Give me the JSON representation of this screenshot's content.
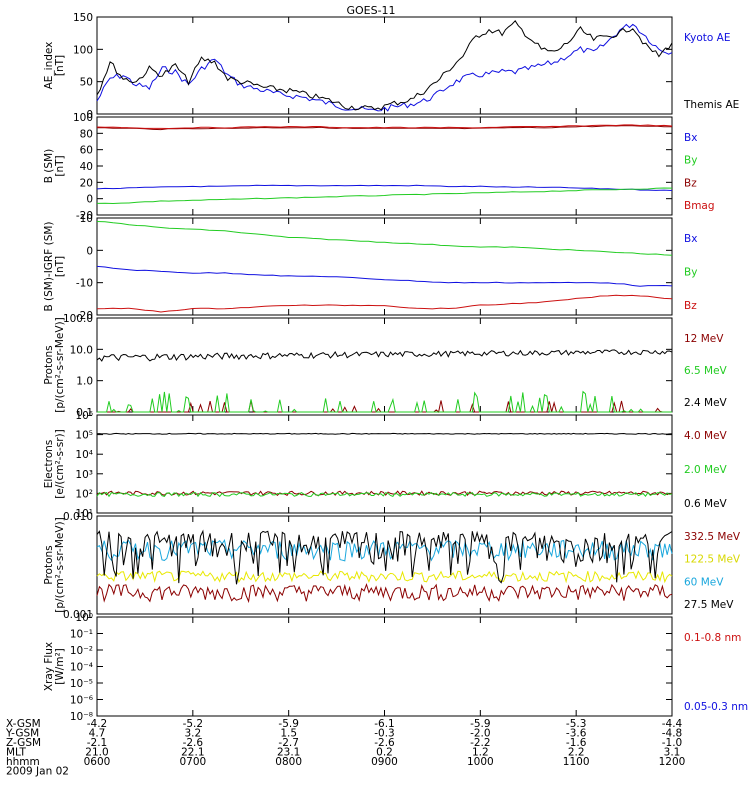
{
  "title": "GOES-11",
  "colors": {
    "black": "#000000",
    "blue": "#1010e0",
    "green": "#22cc22",
    "red": "#cc1111",
    "darkred": "#8b0000",
    "yellow": "#e8e800",
    "cyan": "#1aa7dd"
  },
  "chart_data": [
    {
      "type": "line",
      "ylabel": "AE_index\n[nT]",
      "ylim": [
        0,
        150
      ],
      "yticks": [
        "0",
        "50",
        "100",
        "150"
      ],
      "series": [
        {
          "name": "Kyoto AE",
          "color": "blue",
          "values": [
            20,
            55,
            60,
            45,
            40,
            70,
            65,
            45,
            70,
            85,
            60,
            45,
            40,
            35,
            30,
            28,
            25,
            20,
            15,
            10,
            8,
            5,
            8,
            12,
            15,
            20,
            30,
            45,
            55,
            60,
            62,
            65,
            65,
            70,
            75,
            80,
            90,
            100,
            95,
            110,
            130,
            140,
            120,
            100,
            95
          ]
        },
        {
          "name": "Themis AE",
          "color": "black",
          "values": [
            30,
            80,
            55,
            50,
            70,
            60,
            75,
            50,
            85,
            80,
            55,
            50,
            45,
            40,
            38,
            35,
            30,
            25,
            20,
            12,
            10,
            8,
            12,
            18,
            22,
            35,
            50,
            70,
            90,
            120,
            130,
            125,
            140,
            120,
            100,
            95,
            110,
            130,
            115,
            120,
            125,
            135,
            105,
            90,
            110
          ]
        }
      ]
    },
    {
      "type": "line",
      "ylabel": "B (SM)\n[nT]",
      "ylim": [
        -20,
        100
      ],
      "yticks": [
        "-20",
        "0",
        "20",
        "40",
        "60",
        "80",
        "100"
      ],
      "series": [
        {
          "name": "Bx",
          "color": "blue",
          "values": [
            12,
            13,
            14,
            15,
            15,
            16,
            16,
            16,
            16,
            16,
            16,
            15,
            15,
            14,
            14,
            13,
            12,
            11,
            10
          ]
        },
        {
          "name": "By",
          "color": "green",
          "values": [
            -6,
            -5,
            -3,
            -2,
            -1,
            0,
            1,
            2,
            3,
            4,
            5,
            6,
            7,
            8,
            9,
            10,
            11,
            12,
            13
          ]
        },
        {
          "name": "Bz",
          "color": "darkred",
          "values": [
            87,
            86,
            85,
            86,
            86,
            87,
            87,
            87,
            86,
            86,
            86,
            86,
            86,
            87,
            87,
            88,
            89,
            89,
            88
          ]
        },
        {
          "name": "Bmag",
          "color": "red",
          "values": [
            88,
            87,
            86,
            87,
            87,
            88,
            88,
            88,
            87,
            87,
            87,
            87,
            87,
            88,
            88,
            89,
            90,
            90,
            89
          ]
        }
      ]
    },
    {
      "type": "line",
      "ylabel": "B (SM)-IGRF (SM)\n[nT]",
      "ylim": [
        -20,
        10
      ],
      "yticks": [
        "-20",
        "-10",
        "0",
        "10"
      ],
      "series": [
        {
          "name": "Bx",
          "color": "blue",
          "values": [
            -5,
            -6,
            -6.5,
            -7,
            -7,
            -7.5,
            -8,
            -8,
            -8.5,
            -9,
            -9.5,
            -10,
            -10,
            -10,
            -10,
            -10,
            -10,
            -11,
            -11
          ]
        },
        {
          "name": "By",
          "color": "green",
          "values": [
            9,
            8,
            7,
            6.5,
            6,
            5,
            4,
            3.5,
            3,
            2.5,
            2,
            1.5,
            1,
            1,
            0.5,
            0,
            -0.5,
            -1,
            -1.5
          ]
        },
        {
          "name": "Bz",
          "color": "red",
          "values": [
            -18,
            -18,
            -19,
            -18,
            -18,
            -17.5,
            -17,
            -17,
            -17,
            -17,
            -18,
            -18,
            -17,
            -16.5,
            -16,
            -15,
            -14,
            -14,
            -15
          ]
        }
      ]
    },
    {
      "type": "line",
      "ylabel": "Protons\n[p/(cm²-s-sr-MeV)]",
      "ylog": true,
      "ylim": [
        0.1,
        100
      ],
      "yticks": [
        "0.1",
        "1.0",
        "10.0",
        "100.0"
      ],
      "series": [
        {
          "name": "12 MeV",
          "color": "darkred"
        },
        {
          "name": "6.5 MeV",
          "color": "green"
        },
        {
          "name": "2.4 MeV",
          "color": "black"
        }
      ]
    },
    {
      "type": "line",
      "ylabel": "Electrons\n[e/(cm²-s-sr)]",
      "ylog": true,
      "ylim": [
        10,
        1000000
      ],
      "yticks": [
        "10¹",
        "10²",
        "10³",
        "10⁴",
        "10⁵",
        "10⁶"
      ],
      "series": [
        {
          "name": "4.0 MeV",
          "color": "darkred"
        },
        {
          "name": "2.0 MeV",
          "color": "green"
        },
        {
          "name": "0.6 MeV",
          "color": "black"
        }
      ]
    },
    {
      "type": "line",
      "ylabel": "Protons\n[p/(cm²-s-sr-MeV)]",
      "ylog": true,
      "ylim": [
        0.001,
        0.1
      ],
      "yticks": [
        "0.001",
        "0.010"
      ],
      "series": [
        {
          "name": "332.5 MeV",
          "color": "darkred"
        },
        {
          "name": "122.5 MeV",
          "color": "yellow"
        },
        {
          "name": "60 MeV",
          "color": "cyan"
        },
        {
          "name": "27.5 MeV",
          "color": "black"
        }
      ]
    },
    {
      "type": "line",
      "ylabel": "Xray Flux\n[W/m²]",
      "ylog": true,
      "ylim": [
        1e-09,
        1
      ],
      "yticks": [
        "10⁻⁸",
        "10⁻⁶",
        "10⁻⁵",
        "10⁻⁴",
        "10⁻²",
        "10⁻¹",
        "10⁰"
      ],
      "series": [
        {
          "name": "0.1-0.8 nm",
          "color": "red"
        },
        {
          "name": "0.05-0.3 nm",
          "color": "blue"
        }
      ]
    }
  ],
  "footer": {
    "row_labels": [
      "X-GSM",
      "Y-GSM",
      "Z-GSM",
      "MLT",
      "hhmm",
      "2009 Jan 02"
    ],
    "columns": [
      [
        "-4.2",
        "4.7",
        "-2.1",
        "21.0",
        "0600"
      ],
      [
        "-5.2",
        "3.2",
        "-2.6",
        "22.1",
        "0700"
      ],
      [
        "-5.9",
        "1.5",
        "-2.7",
        "23.1",
        "0800"
      ],
      [
        "-6.1",
        "-0.3",
        "-2.6",
        "0.2",
        "0900"
      ],
      [
        "-5.9",
        "-2.0",
        "-2.2",
        "1.2",
        "1000"
      ],
      [
        "-5.3",
        "-3.6",
        "-1.6",
        "2.2",
        "1100"
      ],
      [
        "-4.4",
        "-4.8",
        "-1.0",
        "3.1",
        "1200"
      ]
    ]
  }
}
